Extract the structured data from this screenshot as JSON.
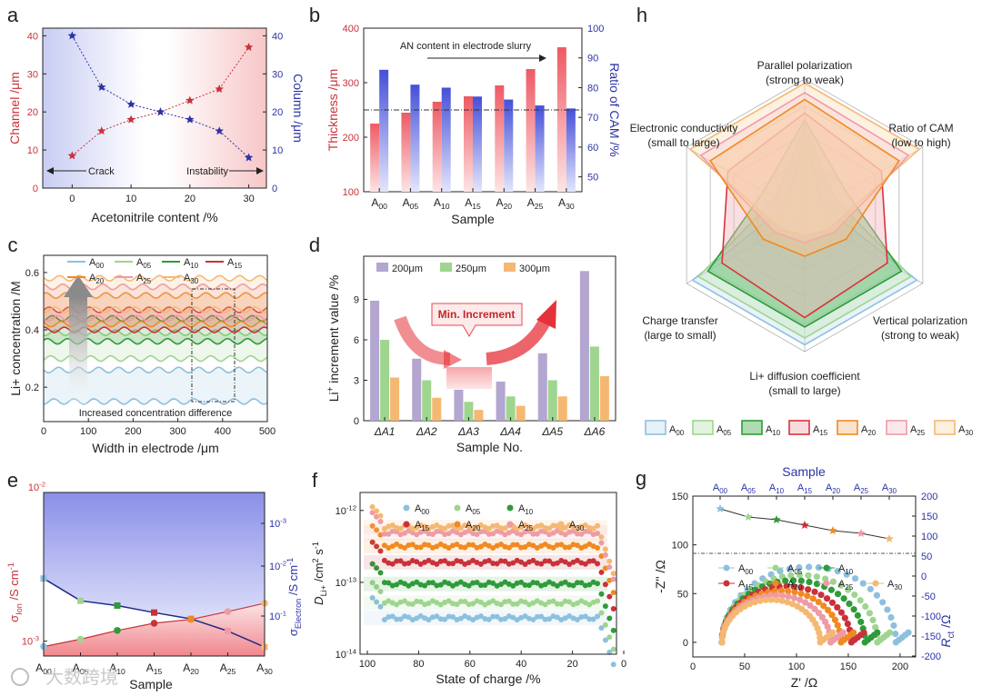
{
  "panel_letters": [
    "a",
    "b",
    "c",
    "d",
    "e",
    "f",
    "g",
    "h"
  ],
  "sample_names": [
    "A00",
    "A05",
    "A10",
    "A15",
    "A20",
    "A25",
    "A30"
  ],
  "colors": {
    "red": "#c8323a",
    "blue": "#2d33a6",
    "green": "#2f9b3a",
    "orange": "#f08a22",
    "pink": "#ee9aa7",
    "lightgreen": "#9fd58f",
    "lightblue": "#8ec0de",
    "peach": "#f5b873",
    "purple": "#b3a6d0",
    "teal": "#1f8aa8"
  },
  "chart_data": [
    {
      "id": "a",
      "type": "line",
      "xlabel": "Acetonitrile content /%",
      "ylabel_left": "Channel /μm",
      "ylabel_right": "Column /μm",
      "x": [
        0,
        5,
        10,
        15,
        20,
        25,
        30
      ],
      "xlim": [
        -5,
        33
      ],
      "ylim": [
        0,
        42
      ],
      "xticks": [
        "0",
        "10",
        "20",
        "30"
      ],
      "yticks_left": [
        "0",
        "10",
        "20",
        "30",
        "40"
      ],
      "yticks_right": [
        "0",
        "10",
        "20",
        "30",
        "40"
      ],
      "series": [
        {
          "name": "Channel",
          "values": [
            8.5,
            15,
            18,
            20,
            23,
            26,
            37
          ]
        },
        {
          "name": "Column",
          "values": [
            40,
            26.5,
            22,
            20,
            18,
            15,
            8
          ]
        }
      ],
      "annotations": [
        "Crack",
        "Instability"
      ]
    },
    {
      "id": "b",
      "type": "bar",
      "title_annotation": "AN content in electrode slurry",
      "xlabel": "Sample",
      "ylabel_left": "Thickness /μm",
      "ylabel_right": "Ratio of CAM /%",
      "categories": [
        "A00",
        "A05",
        "A10",
        "A15",
        "A20",
        "A25",
        "A30"
      ],
      "ylim_left": [
        100,
        400
      ],
      "ylim_right": [
        45,
        100
      ],
      "yticks_left": [
        "100",
        "200",
        "300",
        "400"
      ],
      "yticks_right": [
        "50",
        "60",
        "70",
        "80",
        "90",
        "100"
      ],
      "series": [
        {
          "name": "Thickness",
          "values": [
            225,
            245,
            265,
            275,
            295,
            325,
            365
          ]
        },
        {
          "name": "Ratio of CAM",
          "values": [
            86,
            81,
            80,
            77,
            76,
            74,
            73
          ]
        }
      ],
      "reference_value_left": 250
    },
    {
      "id": "c",
      "type": "line",
      "xlabel": "Width in electrode /μm",
      "ylabel": "Li+ concentration /M",
      "xlim": [
        0,
        500
      ],
      "ylim": [
        0.08,
        0.66
      ],
      "xticks": [
        "0",
        "100",
        "200",
        "300",
        "400",
        "500"
      ],
      "yticks": [
        "0.2",
        "0.4",
        "0.6"
      ],
      "legend": [
        "A00",
        "A05",
        "A10",
        "A15",
        "A20",
        "A25",
        "A30"
      ],
      "series_levels": [
        {
          "name": "A00",
          "low": 0.15,
          "high": 0.26
        },
        {
          "name": "A05",
          "low": 0.3,
          "high": 0.39
        },
        {
          "name": "A10",
          "low": 0.36,
          "high": 0.44
        },
        {
          "name": "A15",
          "low": 0.4,
          "high": 0.47
        },
        {
          "name": "A20",
          "low": 0.42,
          "high": 0.52
        },
        {
          "name": "A25",
          "low": 0.44,
          "high": 0.55
        },
        {
          "name": "A30",
          "low": 0.47,
          "high": 0.58
        }
      ],
      "annotation": "Increased concentration difference"
    },
    {
      "id": "d",
      "type": "bar",
      "xlabel": "Sample No.",
      "ylabel": "Li+ increment value /%",
      "categories": [
        "ΔA1",
        "ΔA2",
        "ΔA3",
        "ΔA4",
        "ΔA5",
        "ΔA6"
      ],
      "ylim": [
        0,
        12.2
      ],
      "yticks": [
        "0",
        "3",
        "6",
        "9"
      ],
      "series": [
        {
          "name": "200μm",
          "values": [
            8.9,
            4.6,
            2.3,
            2.9,
            5.0,
            11.1
          ]
        },
        {
          "name": "250μm",
          "values": [
            6.0,
            3.0,
            1.4,
            1.8,
            3.0,
            5.5
          ]
        },
        {
          "name": "300μm",
          "values": [
            3.2,
            1.7,
            0.8,
            1.1,
            1.8,
            3.3
          ]
        }
      ],
      "annotation": "Min. Increment"
    },
    {
      "id": "e",
      "type": "line",
      "xlabel": "Sample",
      "ylabel_left": "σIon /S cm-1",
      "ylabel_right": "σElectron /S cm-1",
      "categories": [
        "A00",
        "A05",
        "A10",
        "A15",
        "A20",
        "A25",
        "A30"
      ],
      "yscale": "log",
      "yticks_left": [
        "10-3",
        "10-2"
      ],
      "yticks_right": [
        "10-1",
        "10-2",
        "10-3"
      ],
      "series": [
        {
          "name": "σIon (S cm-1)",
          "values": [
            0.00092,
            0.00103,
            0.00118,
            0.00132,
            0.0014,
            0.00158,
            0.0018
          ]
        },
        {
          "name": "σElectron (S cm-1)",
          "values": [
            0.0042,
            0.0075,
            0.0085,
            0.0102,
            0.012,
            0.0165,
            0.025
          ]
        }
      ]
    },
    {
      "id": "f",
      "type": "scatter",
      "xlabel": "State of charge /%",
      "ylabel": "DLi+ /cm2 s-1",
      "xlim": [
        100,
        0
      ],
      "yscale": "log",
      "xticks": [
        "100",
        "80",
        "60",
        "40",
        "20",
        "0"
      ],
      "yticks": [
        "10-12",
        "10-13",
        "10-14"
      ],
      "series": [
        {
          "name": "A00",
          "plateau": 3.2e-14
        },
        {
          "name": "A05",
          "plateau": 5.2e-14
        },
        {
          "name": "A10",
          "plateau": 9.5e-14
        },
        {
          "name": "A15",
          "plateau": 1.9e-13
        },
        {
          "name": "A20",
          "plateau": 3.2e-13
        },
        {
          "name": "A25",
          "plateau": 4.9e-13
        },
        {
          "name": "A30",
          "plateau": 5.9e-13
        }
      ]
    },
    {
      "id": "g",
      "type": "scatter",
      "top_title": "Sample",
      "xlabel": "Z' /Ω",
      "ylabel_left": "-Z'' /Ω",
      "ylabel_right": "Rct /Ω",
      "xlim": [
        0,
        215
      ],
      "ylim": [
        -15,
        150
      ],
      "xticks": [
        "0",
        "50",
        "100",
        "150",
        "200"
      ],
      "yticks_left": [
        "0",
        "25",
        "50",
        "75",
        "100",
        "125",
        "150"
      ],
      "yticks_right": [
        "-200",
        "-150",
        "-100",
        "-50",
        "0",
        "50",
        "100",
        "150",
        "200"
      ],
      "rct": {
        "categories": [
          "A00",
          "A05",
          "A10",
          "A15",
          "A20",
          "A25",
          "A30"
        ],
        "values": [
          165,
          150,
          145,
          135,
          125,
          120,
          110
        ]
      },
      "series": [
        {
          "name": "A00",
          "R0": 28,
          "diameter": 168
        },
        {
          "name": "A05",
          "R0": 28,
          "diameter": 150
        },
        {
          "name": "A10",
          "R0": 28,
          "diameter": 138
        },
        {
          "name": "A15",
          "R0": 28,
          "diameter": 125
        },
        {
          "name": "A20",
          "R0": 28,
          "diameter": 115
        },
        {
          "name": "A25",
          "R0": 28,
          "diameter": 105
        },
        {
          "name": "A30",
          "R0": 28,
          "diameter": 95
        }
      ]
    },
    {
      "id": "h",
      "type": "radar",
      "axes": [
        "Parallel polarization|(strong to weak)",
        "Ratio of CAM|(low to high)",
        "Vertical polarization|(strong to weak)",
        "Li+ diffusion coefficient|(small to large)",
        "Charge transfer|(large to small)",
        "Electronic conductivity|(small to large)"
      ],
      "series": [
        {
          "name": "A00",
          "values": [
            0.6,
            0.15,
            0.95,
            0.95,
            0.95,
            0.15
          ]
        },
        {
          "name": "A05",
          "values": [
            0.65,
            0.25,
            0.9,
            0.9,
            0.9,
            0.25
          ]
        },
        {
          "name": "A10",
          "values": [
            0.7,
            0.35,
            0.82,
            0.82,
            0.82,
            0.35
          ]
        },
        {
          "name": "A15",
          "values": [
            0.75,
            0.65,
            0.7,
            0.75,
            0.7,
            0.65
          ]
        },
        {
          "name": "A20",
          "values": [
            0.85,
            0.8,
            0.35,
            0.3,
            0.35,
            0.8
          ]
        },
        {
          "name": "A25",
          "values": [
            0.9,
            0.88,
            0.25,
            0.2,
            0.25,
            0.88
          ]
        },
        {
          "name": "A30",
          "values": [
            0.97,
            0.97,
            0.2,
            0.15,
            0.2,
            0.97
          ]
        }
      ]
    }
  ],
  "watermark": "大数跨境"
}
